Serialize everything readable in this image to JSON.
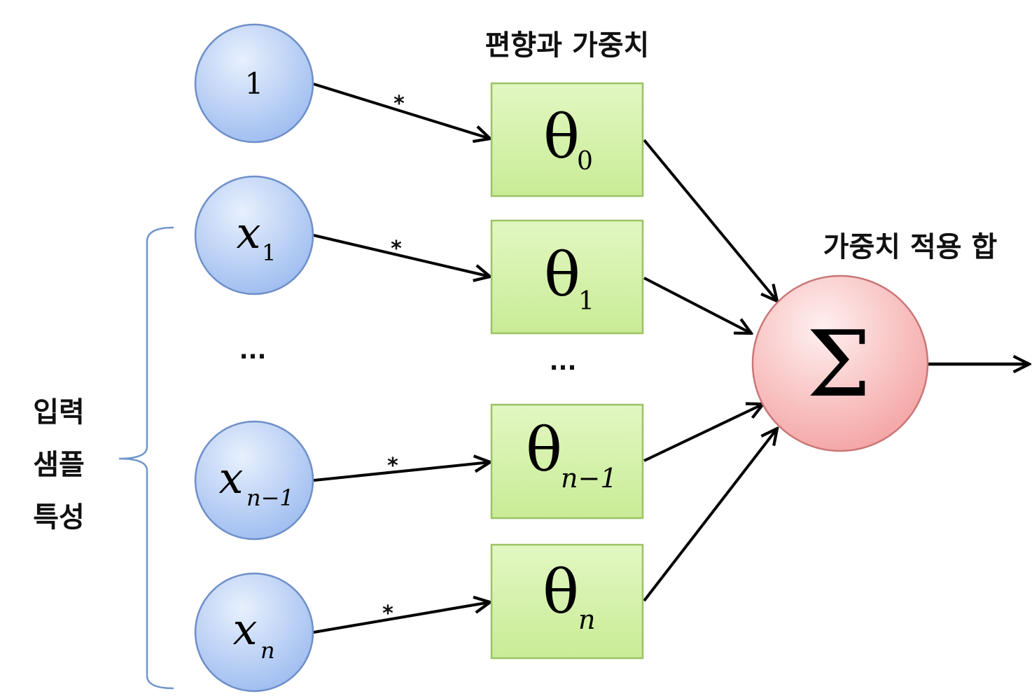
{
  "title_weights": "편향과 가중치",
  "title_sum": "가중치 적용 합",
  "input_label": [
    "입력",
    "샘플",
    "특성"
  ],
  "inputs": [
    {
      "symbol": "1",
      "sub": ""
    },
    {
      "symbol": "x",
      "sub": "1"
    },
    {
      "symbol": "x",
      "sub": "n−1"
    },
    {
      "symbol": "x",
      "sub": "n"
    }
  ],
  "weights": [
    {
      "symbol": "θ",
      "sub": "0"
    },
    {
      "symbol": "θ",
      "sub": "1"
    },
    {
      "symbol": "θ",
      "sub": "n−1"
    },
    {
      "symbol": "θ",
      "sub": "n"
    }
  ],
  "multiply_symbol": "*",
  "ellipsis": "...",
  "sum_symbol": "Σ",
  "colors": {
    "input_fill_top": "#dbe7fb",
    "input_fill_bottom": "#9dbcf0",
    "input_stroke": "#6f8fc9",
    "weight_fill": "#d3f0a8",
    "weight_stroke": "#9cc265",
    "sum_fill_top": "#ffe3e3",
    "sum_fill_bottom": "#f4a3a3",
    "sum_stroke": "#c97777",
    "brace": "#6f95cc",
    "arrow": "#000000"
  }
}
